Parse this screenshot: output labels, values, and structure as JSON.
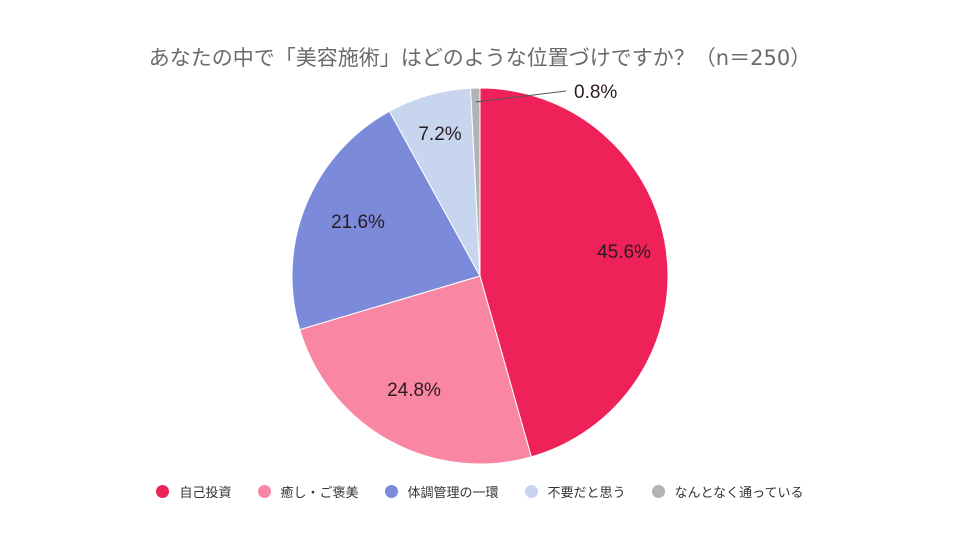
{
  "chart_data": {
    "type": "pie",
    "title": "あなたの中で「美容施術」はどのような位置づけですか？（n＝250）",
    "categories": [
      "自己投資",
      "癒し・ご褒美",
      "体調管理の一環",
      "不要だと思う",
      "なんとなく通っている"
    ],
    "values": [
      45.6,
      24.8,
      21.6,
      7.2,
      0.8
    ],
    "labels": [
      "45.6%",
      "24.8%",
      "21.6%",
      "7.2%",
      "0.8%"
    ],
    "colors": [
      "#ee2158",
      "#f987a3",
      "#7b8bd9",
      "#c7d5ef",
      "#b3b3b3"
    ],
    "legend_position": "bottom",
    "start_angle": "top, clockwise"
  },
  "title": "あなたの中で「美容施術」はどのような位置づけですか？（n＝250）",
  "legend": [
    {
      "label": "自己投資",
      "color": "#ee2158"
    },
    {
      "label": "癒し・ご褒美",
      "color": "#f987a3"
    },
    {
      "label": "体調管理の一環",
      "color": "#7b8bd9"
    },
    {
      "label": "不要だと思う",
      "color": "#c7d5ef"
    },
    {
      "label": "なんとなく通っている",
      "color": "#b3b3b3"
    }
  ]
}
